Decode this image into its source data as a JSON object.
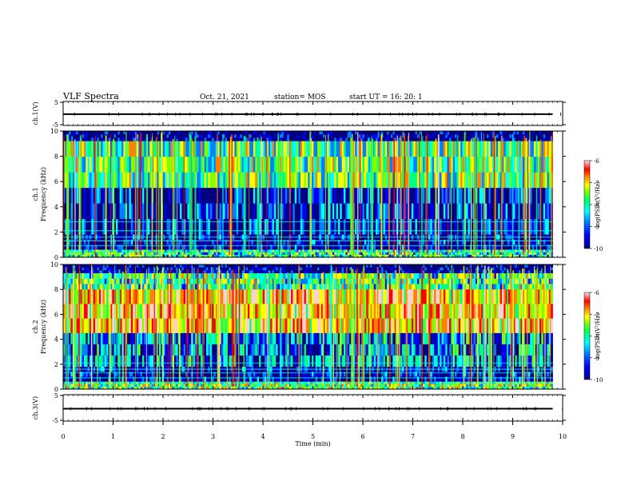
{
  "header": {
    "title": "VLF Spectra",
    "date": "Oct. 21, 2021",
    "station": "station= MOS",
    "start": "start  UT =   16: 20: 1"
  },
  "colors": {
    "spectral_scale": [
      "#000080",
      "#0000ff",
      "#0080ff",
      "#00ffff",
      "#00ff80",
      "#80ff00",
      "#ffff00",
      "#ff8000",
      "#ff0000",
      "#ffd0d0"
    ]
  },
  "chart_data": [
    {
      "type": "line",
      "panel": "ch1-voltage",
      "ylabel": "ch.1(V)",
      "ylim": [
        -5,
        5
      ],
      "yticks": [
        "5",
        "-5"
      ],
      "xlim": [
        0,
        10
      ],
      "series": [
        {
          "x": [
            0,
            9.8
          ],
          "y": [
            -0.3,
            -0.3
          ]
        }
      ]
    },
    {
      "type": "heatmap",
      "panel": "ch1-spectrogram",
      "ylabel": "ch.1\nFrequency (kHz)",
      "ylim": [
        0,
        10
      ],
      "yticks": [
        "0",
        "2",
        "4",
        "6",
        "8",
        "10"
      ],
      "xlim": [
        0,
        10
      ],
      "data_end_min": 9.8,
      "colorbar": {
        "label": "log(PSD)(V²/Hz)",
        "range": [
          -10,
          -6
        ],
        "ticks": [
          "-6",
          "-7",
          "-8",
          "-9",
          "-10"
        ]
      },
      "band_profile": [
        {
          "f": [
            0,
            0.6
          ],
          "level": -8.3
        },
        {
          "f": [
            0.6,
            1.8
          ],
          "level": -9.8
        },
        {
          "f": [
            1.8,
            5.5
          ],
          "level": -9.6
        },
        {
          "f": [
            5.5,
            9.2
          ],
          "level": -8.1
        },
        {
          "f": [
            9.2,
            10
          ],
          "level": -10
        }
      ],
      "horizontal_lines_khz": [
        0.5,
        0.9,
        1.3,
        1.6,
        2.1,
        2.8
      ]
    },
    {
      "type": "heatmap",
      "panel": "ch2-spectrogram",
      "ylabel": "ch.2\nFrequency (kHz)",
      "ylim": [
        0,
        10
      ],
      "yticks": [
        "0",
        "2",
        "4",
        "6",
        "8",
        "10"
      ],
      "xlim": [
        0,
        10
      ],
      "data_end_min": 9.8,
      "colorbar": {
        "label": "log(PSD)(V²/Hz)",
        "range": [
          -10,
          -6
        ],
        "ticks": [
          "-6",
          "-7",
          "-8",
          "-9",
          "-10"
        ]
      },
      "band_profile": [
        {
          "f": [
            0,
            0.6
          ],
          "level": -8.0
        },
        {
          "f": [
            0.6,
            1.8
          ],
          "level": -9.8
        },
        {
          "f": [
            1.8,
            4.5
          ],
          "level": -9.0
        },
        {
          "f": [
            4.5,
            8.0
          ],
          "level": -7.0
        },
        {
          "f": [
            8.0,
            9.3
          ],
          "level": -8.2
        },
        {
          "f": [
            9.3,
            10
          ],
          "level": -10
        }
      ],
      "horizontal_lines_khz": [
        0.5,
        0.9,
        1.3,
        1.6,
        2.1
      ]
    },
    {
      "type": "line",
      "panel": "ch3-voltage",
      "ylabel": "ch.3(V)",
      "ylim": [
        -5,
        5
      ],
      "yticks": [
        "5",
        "-5"
      ],
      "xlim": [
        0,
        10
      ],
      "series": [
        {
          "x": [
            0,
            9.8
          ],
          "y": [
            -0.3,
            -0.3
          ]
        }
      ]
    }
  ],
  "time_axis": {
    "xlabel": "Time (min)",
    "ticks": [
      "0",
      "1",
      "2",
      "3",
      "4",
      "5",
      "6",
      "7",
      "8",
      "9",
      "10"
    ]
  }
}
